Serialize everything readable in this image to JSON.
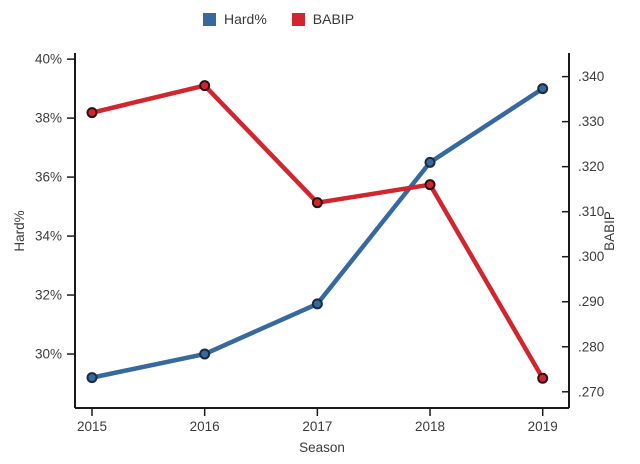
{
  "chart_data": {
    "type": "line",
    "title": "",
    "xlabel": "Season",
    "x": [
      2015,
      2016,
      2017,
      2018,
      2019
    ],
    "x_tick_labels": [
      "2015",
      "2016",
      "2017",
      "2018",
      "2019"
    ],
    "series": [
      {
        "name": "Hard%",
        "axis": "left",
        "color": "#36699e",
        "point_stroke": "#1d2a3c",
        "values": [
          29.2,
          30.0,
          31.7,
          36.5,
          39.0
        ]
      },
      {
        "name": "BABIP",
        "axis": "right",
        "color": "#d2262f",
        "point_stroke": "#2b1113",
        "values": [
          0.332,
          0.338,
          0.312,
          0.316,
          0.273
        ]
      }
    ],
    "left_axis": {
      "label": "Hard%",
      "range": [
        28.17,
        40.14
      ],
      "tick_values": [
        30,
        32,
        34,
        36,
        38,
        40
      ],
      "tick_labels": [
        "30%",
        "32%",
        "34%",
        "36%",
        "38%",
        "40%"
      ]
    },
    "right_axis": {
      "label": "BABIP",
      "range": [
        0.2664,
        0.3448
      ],
      "tick_values": [
        0.27,
        0.28,
        0.29,
        0.3,
        0.31,
        0.32,
        0.33,
        0.34
      ],
      "tick_labels": [
        ".270",
        ".280",
        ".290",
        ".300",
        ".310",
        ".320",
        ".330",
        ".340"
      ]
    },
    "grid": false,
    "legend_position": "top",
    "axis_color": "#1a1a1a",
    "text_color": "#3c3c3c"
  }
}
